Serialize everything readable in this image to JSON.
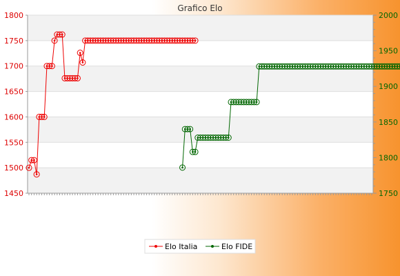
{
  "chart_data": {
    "type": "line",
    "title": "Grafico Elo",
    "grid": true,
    "legend_position": "bottom",
    "x_count": 135,
    "x_tick_labels_note": "",
    "y_left": {
      "min": 1450,
      "max": 1800,
      "ticks": [
        1450,
        1500,
        1550,
        1600,
        1650,
        1700,
        1750,
        1800
      ],
      "color": "#dd0000"
    },
    "y_right": {
      "min": 1750,
      "max": 2000,
      "ticks": [
        1750,
        1800,
        1850,
        1900,
        1950,
        2000
      ],
      "color": "#006600"
    },
    "series": [
      {
        "name": "Elo Italia",
        "axis": "left",
        "color": "#ee0000",
        "values": [
          1500,
          1515,
          1515,
          1487,
          1600,
          1600,
          1600,
          1700,
          1700,
          1700,
          1750,
          1762,
          1762,
          1762,
          1676,
          1676,
          1676,
          1676,
          1676,
          1676,
          1726,
          1707,
          1750,
          1750,
          1750,
          1750,
          1750,
          1750,
          1750,
          1750,
          1750,
          1750,
          1750,
          1750,
          1750,
          1750,
          1750,
          1750,
          1750,
          1750,
          1750,
          1750,
          1750,
          1750,
          1750,
          1750,
          1750,
          1750,
          1750,
          1750,
          1750,
          1750,
          1750,
          1750,
          1750,
          1750,
          1750,
          1750,
          1750,
          1750,
          1750,
          1750,
          1750,
          1750,
          1750,
          1750
        ]
      },
      {
        "name": "Elo FIDE",
        "axis": "right",
        "color": "#006600",
        "start_index": 60,
        "values": [
          1786,
          1840,
          1840,
          1840,
          1808,
          1808,
          1828,
          1828,
          1828,
          1828,
          1828,
          1828,
          1828,
          1828,
          1828,
          1828,
          1828,
          1828,
          1828,
          1878,
          1878,
          1878,
          1878,
          1878,
          1878,
          1878,
          1878,
          1878,
          1878,
          1878,
          1928,
          1928,
          1928,
          1928,
          1928,
          1928,
          1928,
          1928,
          1928,
          1928,
          1928,
          1928,
          1928,
          1928,
          1928,
          1928,
          1928,
          1928,
          1928,
          1928,
          1928,
          1928,
          1928,
          1928,
          1928,
          1928,
          1928,
          1928,
          1928,
          1928,
          1928,
          1928,
          1928,
          1928,
          1928,
          1928,
          1928,
          1928,
          1928,
          1928,
          1928,
          1928,
          1928,
          1928,
          1928,
          1928,
          1928,
          1928,
          1928,
          1928,
          1928,
          1928,
          1928,
          1928,
          1928,
          1928,
          1928,
          1928,
          1928,
          1928,
          1928,
          1928,
          1928
        ]
      }
    ]
  }
}
